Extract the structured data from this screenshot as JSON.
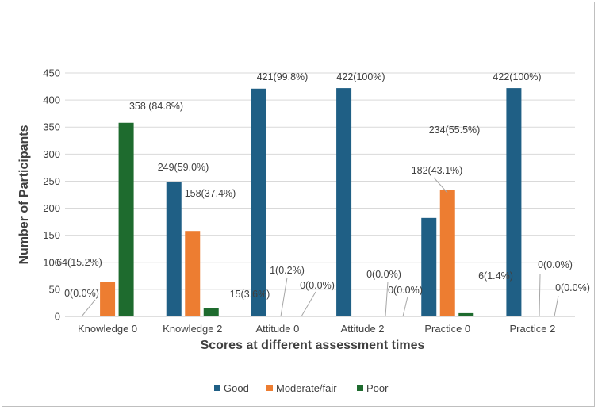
{
  "chart_data": {
    "type": "bar",
    "title": "",
    "xlabel": "Scores at different assessment times",
    "ylabel": "Number of Participants",
    "ylim": [
      0,
      450
    ],
    "yticks": [
      0,
      50,
      100,
      150,
      200,
      250,
      300,
      350,
      400,
      450
    ],
    "grid": true,
    "legend_position": "bottom",
    "categories": [
      "Knowledge 0",
      "Knowledge 2",
      "Attitude 0",
      "Attitude 2",
      "Practice 0",
      "Practice 2"
    ],
    "series": [
      {
        "name": "Good",
        "color": "#1f5f85",
        "values": [
          0,
          249,
          421,
          422,
          182,
          422
        ],
        "labels": [
          "0(0.0%)",
          "249(59.0%)",
          "421(99.8%)",
          "422(100%)",
          "182(43.1%)",
          "422(100%)"
        ]
      },
      {
        "name": "Moderate/fair",
        "color": "#ed7d31",
        "values": [
          64,
          158,
          1,
          0,
          234,
          0
        ],
        "labels": [
          "64(15.2%)",
          "158(37.4%)",
          "1(0.2%)",
          "0(0.0%)",
          "234(55.5%)",
          "0(0.0%)"
        ]
      },
      {
        "name": "Poor",
        "color": "#1e6b2e",
        "values": [
          358,
          15,
          0,
          0,
          6,
          0
        ],
        "labels": [
          "358 (84.8%)",
          "15(3.6%)",
          "0(0.0%)",
          "0(0.0%)",
          "6(1.4%)",
          "0(0.0%)"
        ]
      }
    ]
  }
}
